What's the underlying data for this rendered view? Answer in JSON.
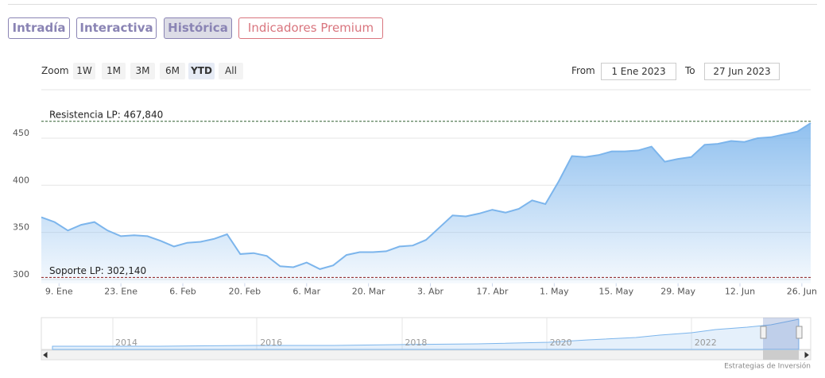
{
  "tabs": [
    "Intradía",
    "Interactiva",
    "Histórica",
    "Indicadores Premium"
  ],
  "zoom": {
    "label": "Zoom",
    "buttons": [
      "1W",
      "1M",
      "3M",
      "6M",
      "YTD",
      "All"
    ]
  },
  "range": {
    "from_label": "From",
    "from": "1 Ene 2023",
    "to_label": "To",
    "to": "27 Jun 2023"
  },
  "chart_data": {
    "type": "area",
    "color": "#7cb5ec",
    "x": [
      "2023-01-05",
      "2023-01-08",
      "2023-01-11",
      "2023-01-14",
      "2023-01-17",
      "2023-01-20",
      "2023-01-23",
      "2023-01-26",
      "2023-01-29",
      "2023-02-01",
      "2023-02-04",
      "2023-02-07",
      "2023-02-10",
      "2023-02-13",
      "2023-02-16",
      "2023-02-19",
      "2023-02-22",
      "2023-02-25",
      "2023-02-28",
      "2023-03-03",
      "2023-03-06",
      "2023-03-09",
      "2023-03-12",
      "2023-03-15",
      "2023-03-18",
      "2023-03-21",
      "2023-03-24",
      "2023-03-27",
      "2023-03-30",
      "2023-04-02",
      "2023-04-05",
      "2023-04-08",
      "2023-04-11",
      "2023-04-14",
      "2023-04-17",
      "2023-04-20",
      "2023-04-23",
      "2023-04-26",
      "2023-04-29",
      "2023-05-02",
      "2023-05-05",
      "2023-05-08",
      "2023-05-11",
      "2023-05-14",
      "2023-05-17",
      "2023-05-20",
      "2023-05-23",
      "2023-05-26",
      "2023-05-29",
      "2023-06-01",
      "2023-06-04",
      "2023-06-07",
      "2023-06-10",
      "2023-06-13",
      "2023-06-16",
      "2023-06-19",
      "2023-06-22",
      "2023-06-25",
      "2023-06-28"
    ],
    "values": [
      366,
      361,
      352,
      358,
      361,
      352,
      346,
      347,
      346,
      341,
      335,
      339,
      340,
      343,
      348,
      327,
      328,
      325,
      314,
      313,
      318,
      311,
      315,
      326,
      329,
      329,
      330,
      335,
      336,
      342,
      355,
      368,
      367,
      370,
      374,
      371,
      375,
      384,
      380,
      404,
      431,
      430,
      432,
      436,
      436,
      437,
      441,
      425,
      428,
      430,
      443,
      444,
      447,
      446,
      450,
      451,
      454,
      457,
      466
    ],
    "xlim": [
      "2023-01-05",
      "2023-06-28"
    ],
    "ylim": [
      296,
      490
    ],
    "yticks": [
      300,
      350,
      400,
      450
    ],
    "xticks": [
      {
        "value": "2023-01-09",
        "label": "9. Ene"
      },
      {
        "value": "2023-01-23",
        "label": "23. Ene"
      },
      {
        "value": "2023-02-06",
        "label": "6. Feb"
      },
      {
        "value": "2023-02-20",
        "label": "20. Feb"
      },
      {
        "value": "2023-03-06",
        "label": "6. Mar"
      },
      {
        "value": "2023-03-20",
        "label": "20. Mar"
      },
      {
        "value": "2023-04-03",
        "label": "3. Abr"
      },
      {
        "value": "2023-04-17",
        "label": "17. Abr"
      },
      {
        "value": "2023-05-01",
        "label": "1. May"
      },
      {
        "value": "2023-05-15",
        "label": "15. May"
      },
      {
        "value": "2023-05-29",
        "label": "29. May"
      },
      {
        "value": "2023-06-12",
        "label": "12. Jun"
      },
      {
        "value": "2023-06-26",
        "label": "26. Jun"
      }
    ],
    "grid": true,
    "plot_lines": [
      {
        "label": "Resistencia LP: 467,840",
        "value": 467.84,
        "color": "#2f5f2f"
      },
      {
        "label": "Soporte LP: 302,140",
        "value": 302.14,
        "color": "#8b1a1a"
      }
    ]
  },
  "navigator": {
    "labels": [
      "2014",
      "2016",
      "2018",
      "2020",
      "2022"
    ]
  },
  "credit": "Estrategias de Inversión"
}
